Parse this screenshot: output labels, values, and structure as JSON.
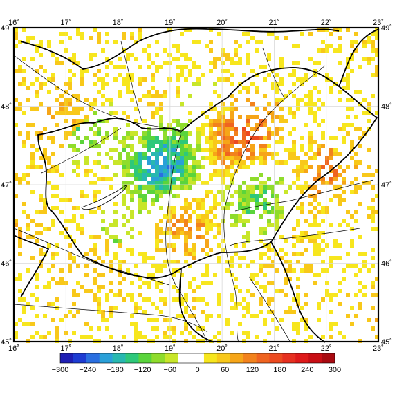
{
  "map": {
    "lon_range": [
      16,
      23
    ],
    "lat_range": [
      45,
      49
    ],
    "lon_ticks": [
      "16˚",
      "17˚",
      "18˚",
      "19˚",
      "20˚",
      "21˚",
      "22˚",
      "23˚"
    ],
    "lat_ticks": [
      "45˚",
      "46˚",
      "47˚",
      "48˚",
      "49˚"
    ],
    "grid": true,
    "background_color": "#ffffff",
    "border_color": "#000000",
    "features": [
      "national-borders",
      "rivers",
      "lake-balaton",
      "precipitation-difference-field"
    ]
  },
  "colorbar": {
    "orientation": "horizontal",
    "placement": "bottom",
    "range": [
      -300,
      300
    ],
    "tick_labels": [
      "−300",
      "−240",
      "−180",
      "−120",
      "−60",
      "0",
      "60",
      "120",
      "180",
      "240",
      "300"
    ],
    "colors": [
      "#1f1fb4",
      "#1e3cd2",
      "#2a6fe0",
      "#2aa0d8",
      "#28b8b0",
      "#2ec87a",
      "#5ad43c",
      "#8fdc2c",
      "#c8e62a",
      "#ffffff",
      "#ffffff",
      "#f7e61e",
      "#f8c81a",
      "#f6a518",
      "#f2821c",
      "#ef6420",
      "#ec4a20",
      "#e63020",
      "#de1a1a",
      "#c80e14",
      "#a80a10"
    ]
  }
}
